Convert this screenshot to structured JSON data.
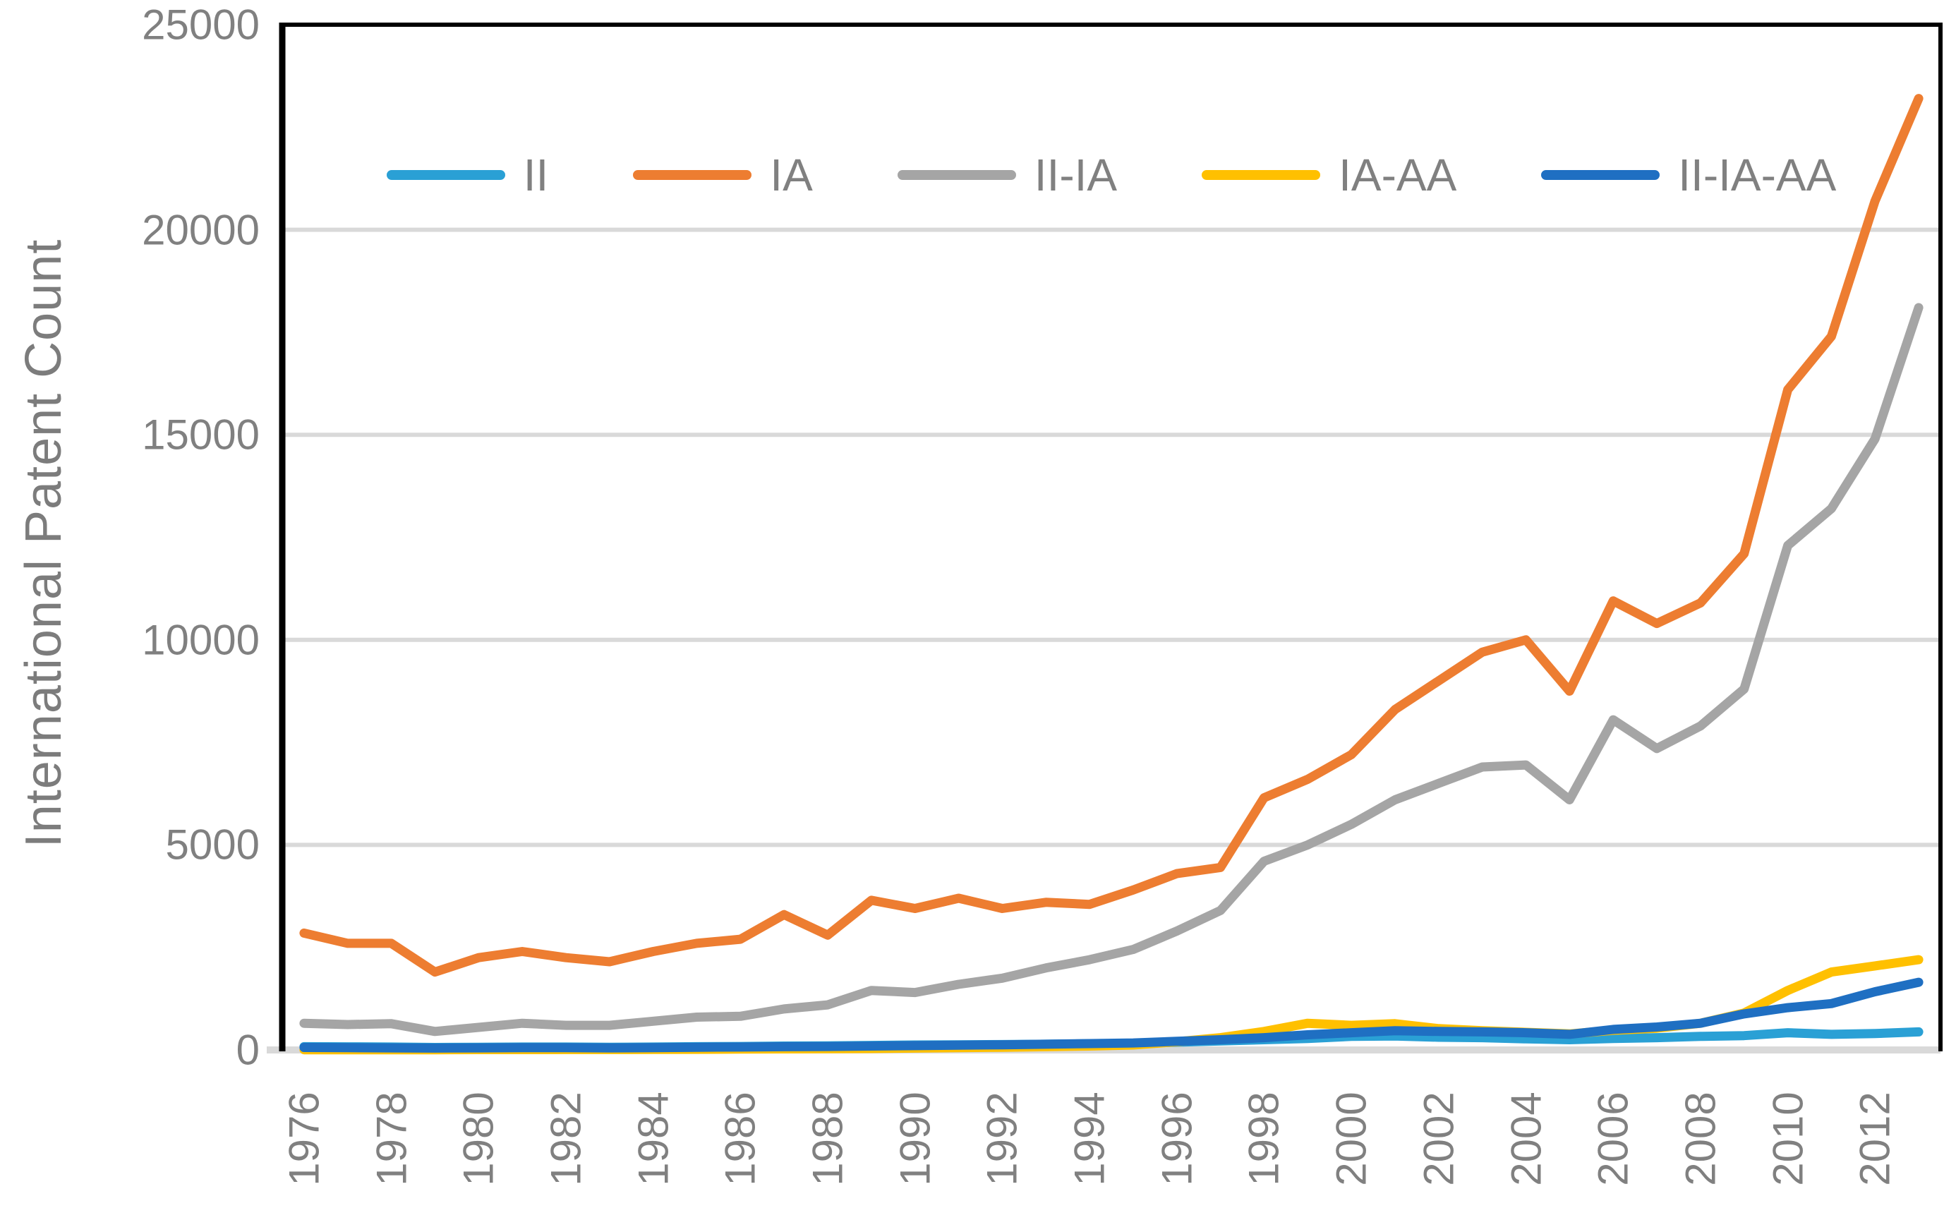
{
  "chart_data": {
    "type": "line",
    "title": "",
    "xlabel": "",
    "ylabel": "International Patent Count",
    "x": [
      1976,
      1977,
      1978,
      1979,
      1980,
      1981,
      1982,
      1983,
      1984,
      1985,
      1986,
      1987,
      1988,
      1989,
      1990,
      1991,
      1992,
      1993,
      1994,
      1995,
      1996,
      1997,
      1998,
      1999,
      2000,
      2001,
      2002,
      2003,
      2004,
      2005,
      2006,
      2007,
      2008,
      2009,
      2010,
      2011,
      2012,
      2013
    ],
    "x_tick_labels": [
      "1976",
      "1978",
      "1980",
      "1982",
      "1984",
      "1986",
      "1988",
      "1990",
      "1992",
      "1994",
      "1996",
      "1998",
      "2000",
      "2002",
      "2004",
      "2006",
      "2008",
      "2010",
      "2012"
    ],
    "y_ticks": [
      "0",
      "5000",
      "10000",
      "15000",
      "20000",
      "25000"
    ],
    "ylim": [
      0,
      25000
    ],
    "grid": "horizontal",
    "legend_position": "top-center",
    "colors": {
      "grid": "#d9d9d9",
      "axis": "#000000",
      "text": "#808080"
    },
    "series": [
      {
        "name": "II",
        "color": "#2AA0D5",
        "values": [
          80,
          75,
          70,
          60,
          65,
          70,
          70,
          65,
          70,
          80,
          85,
          95,
          100,
          110,
          120,
          125,
          130,
          140,
          150,
          160,
          190,
          220,
          250,
          280,
          330,
          340,
          310,
          300,
          270,
          250,
          280,
          300,
          330,
          350,
          420,
          380,
          400,
          440
        ]
      },
      {
        "name": "IA",
        "color": "#ED7D31",
        "values": [
          2850,
          2600,
          2600,
          1900,
          2250,
          2400,
          2250,
          2150,
          2400,
          2600,
          2700,
          3300,
          2800,
          3650,
          3450,
          3700,
          3450,
          3600,
          3550,
          3900,
          4300,
          4450,
          6150,
          6600,
          7200,
          8300,
          9000,
          9700,
          10000,
          8750,
          10950,
          10400,
          10900,
          12100,
          16100,
          17400,
          20700,
          23200
        ]
      },
      {
        "name": "II-IA",
        "color": "#A5A5A5",
        "values": [
          650,
          620,
          640,
          450,
          550,
          650,
          600,
          600,
          700,
          800,
          820,
          1000,
          1100,
          1450,
          1400,
          1600,
          1750,
          2000,
          2200,
          2450,
          2900,
          3400,
          4600,
          5000,
          5500,
          6100,
          6500,
          6900,
          6950,
          6100,
          8050,
          7350,
          7900,
          8800,
          12300,
          13200,
          14900,
          18100
        ]
      },
      {
        "name": "IA-AA",
        "color": "#FFC000",
        "values": [
          5,
          5,
          5,
          5,
          8,
          8,
          10,
          10,
          12,
          15,
          20,
          25,
          30,
          35,
          45,
          55,
          65,
          80,
          95,
          120,
          200,
          300,
          450,
          650,
          600,
          640,
          520,
          470,
          430,
          390,
          480,
          530,
          650,
          900,
          1450,
          1900,
          2050,
          2200
        ]
      },
      {
        "name": "II-IA-AA",
        "color": "#1F6FC2",
        "values": [
          60,
          55,
          50,
          45,
          50,
          55,
          55,
          50,
          55,
          65,
          70,
          80,
          85,
          95,
          105,
          115,
          125,
          140,
          155,
          170,
          210,
          250,
          300,
          370,
          420,
          470,
          450,
          440,
          420,
          380,
          500,
          560,
          650,
          880,
          1030,
          1130,
          1420,
          1650
        ]
      }
    ]
  }
}
